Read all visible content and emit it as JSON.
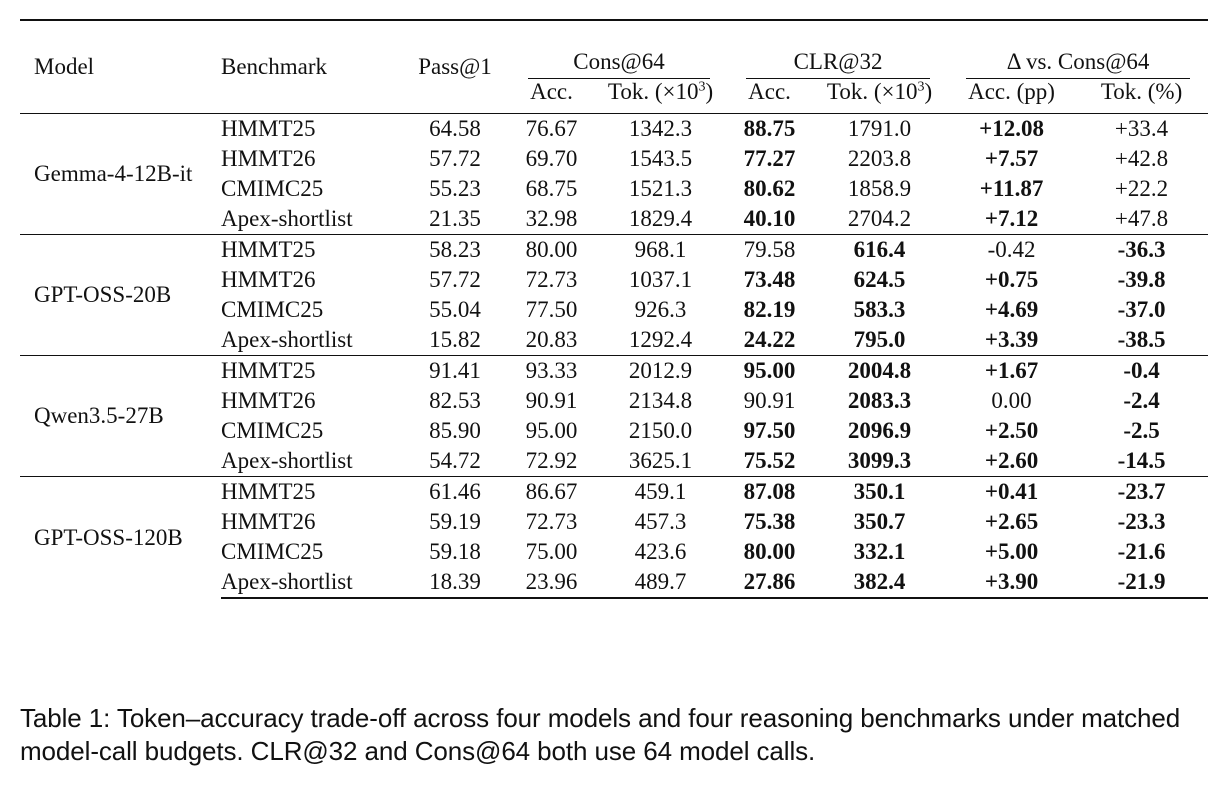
{
  "table": {
    "headers": {
      "model": "Model",
      "benchmark": "Benchmark",
      "pass1": "Pass@1",
      "cons64": "Cons@64",
      "clr32": "CLR@32",
      "delta": "Δ vs. Cons@64",
      "acc": "Acc.",
      "tok_prefix": "Tok. (×10",
      "tok_exp": "3",
      "tok_suffix": ")",
      "acc_pp": "Acc. (pp)",
      "tok_pct": "Tok. (%)"
    },
    "groups": [
      {
        "model": "Gemma-4-12B-it",
        "rows": [
          {
            "benchmark": "HMMT25",
            "pass1": "64.58",
            "cons_acc": "76.67",
            "cons_tok": "1342.3",
            "clr_acc": "88.75",
            "clr_tok": "1791.0",
            "d_acc": "+12.08",
            "d_tok": "+33.4"
          },
          {
            "benchmark": "HMMT26",
            "pass1": "57.72",
            "cons_acc": "69.70",
            "cons_tok": "1543.5",
            "clr_acc": "77.27",
            "clr_tok": "2203.8",
            "d_acc": "+7.57",
            "d_tok": "+42.8"
          },
          {
            "benchmark": "CMIMC25",
            "pass1": "55.23",
            "cons_acc": "68.75",
            "cons_tok": "1521.3",
            "clr_acc": "80.62",
            "clr_tok": "1858.9",
            "d_acc": "+11.87",
            "d_tok": "+22.2"
          },
          {
            "benchmark": "Apex-shortlist",
            "pass1": "21.35",
            "cons_acc": "32.98",
            "cons_tok": "1829.4",
            "clr_acc": "40.10",
            "clr_tok": "2704.2",
            "d_acc": "+7.12",
            "d_tok": "+47.8"
          }
        ]
      },
      {
        "model": "GPT-OSS-20B",
        "rows": [
          {
            "benchmark": "HMMT25",
            "pass1": "58.23",
            "cons_acc": "80.00",
            "cons_tok": "968.1",
            "clr_acc": "79.58",
            "clr_tok": "616.4",
            "d_acc": "-0.42",
            "d_tok": "-36.3"
          },
          {
            "benchmark": "HMMT26",
            "pass1": "57.72",
            "cons_acc": "72.73",
            "cons_tok": "1037.1",
            "clr_acc": "73.48",
            "clr_tok": "624.5",
            "d_acc": "+0.75",
            "d_tok": "-39.8"
          },
          {
            "benchmark": "CMIMC25",
            "pass1": "55.04",
            "cons_acc": "77.50",
            "cons_tok": "926.3",
            "clr_acc": "82.19",
            "clr_tok": "583.3",
            "d_acc": "+4.69",
            "d_tok": "-37.0"
          },
          {
            "benchmark": "Apex-shortlist",
            "pass1": "15.82",
            "cons_acc": "20.83",
            "cons_tok": "1292.4",
            "clr_acc": "24.22",
            "clr_tok": "795.0",
            "d_acc": "+3.39",
            "d_tok": "-38.5"
          }
        ]
      },
      {
        "model": "Qwen3.5-27B",
        "rows": [
          {
            "benchmark": "HMMT25",
            "pass1": "91.41",
            "cons_acc": "93.33",
            "cons_tok": "2012.9",
            "clr_acc": "95.00",
            "clr_tok": "2004.8",
            "d_acc": "+1.67",
            "d_tok": "-0.4"
          },
          {
            "benchmark": "HMMT26",
            "pass1": "82.53",
            "cons_acc": "90.91",
            "cons_tok": "2134.8",
            "clr_acc": "90.91",
            "clr_tok": "2083.3",
            "d_acc": "0.00",
            "d_tok": "-2.4"
          },
          {
            "benchmark": "CMIMC25",
            "pass1": "85.90",
            "cons_acc": "95.00",
            "cons_tok": "2150.0",
            "clr_acc": "97.50",
            "clr_tok": "2096.9",
            "d_acc": "+2.50",
            "d_tok": "-2.5"
          },
          {
            "benchmark": "Apex-shortlist",
            "pass1": "54.72",
            "cons_acc": "72.92",
            "cons_tok": "3625.1",
            "clr_acc": "75.52",
            "clr_tok": "3099.3",
            "d_acc": "+2.60",
            "d_tok": "-14.5"
          }
        ]
      },
      {
        "model": "GPT-OSS-120B",
        "rows": [
          {
            "benchmark": "HMMT25",
            "pass1": "61.46",
            "cons_acc": "86.67",
            "cons_tok": "459.1",
            "clr_acc": "87.08",
            "clr_tok": "350.1",
            "d_acc": "+0.41",
            "d_tok": "-23.7"
          },
          {
            "benchmark": "HMMT26",
            "pass1": "59.19",
            "cons_acc": "72.73",
            "cons_tok": "457.3",
            "clr_acc": "75.38",
            "clr_tok": "350.7",
            "d_acc": "+2.65",
            "d_tok": "-23.3"
          },
          {
            "benchmark": "CMIMC25",
            "pass1": "59.18",
            "cons_acc": "75.00",
            "cons_tok": "423.6",
            "clr_acc": "80.00",
            "clr_tok": "332.1",
            "d_acc": "+5.00",
            "d_tok": "-21.6"
          },
          {
            "benchmark": "Apex-shortlist",
            "pass1": "18.39",
            "cons_acc": "23.96",
            "cons_tok": "489.7",
            "clr_acc": "27.86",
            "clr_tok": "382.4",
            "d_acc": "+3.90",
            "d_tok": "-21.9"
          }
        ]
      }
    ]
  },
  "caption": "Table 1: Token–accuracy trade-off across four models and four reasoning benchmarks under matched model-call budgets. CLR@32 and Cons@64 both use 64 model calls."
}
